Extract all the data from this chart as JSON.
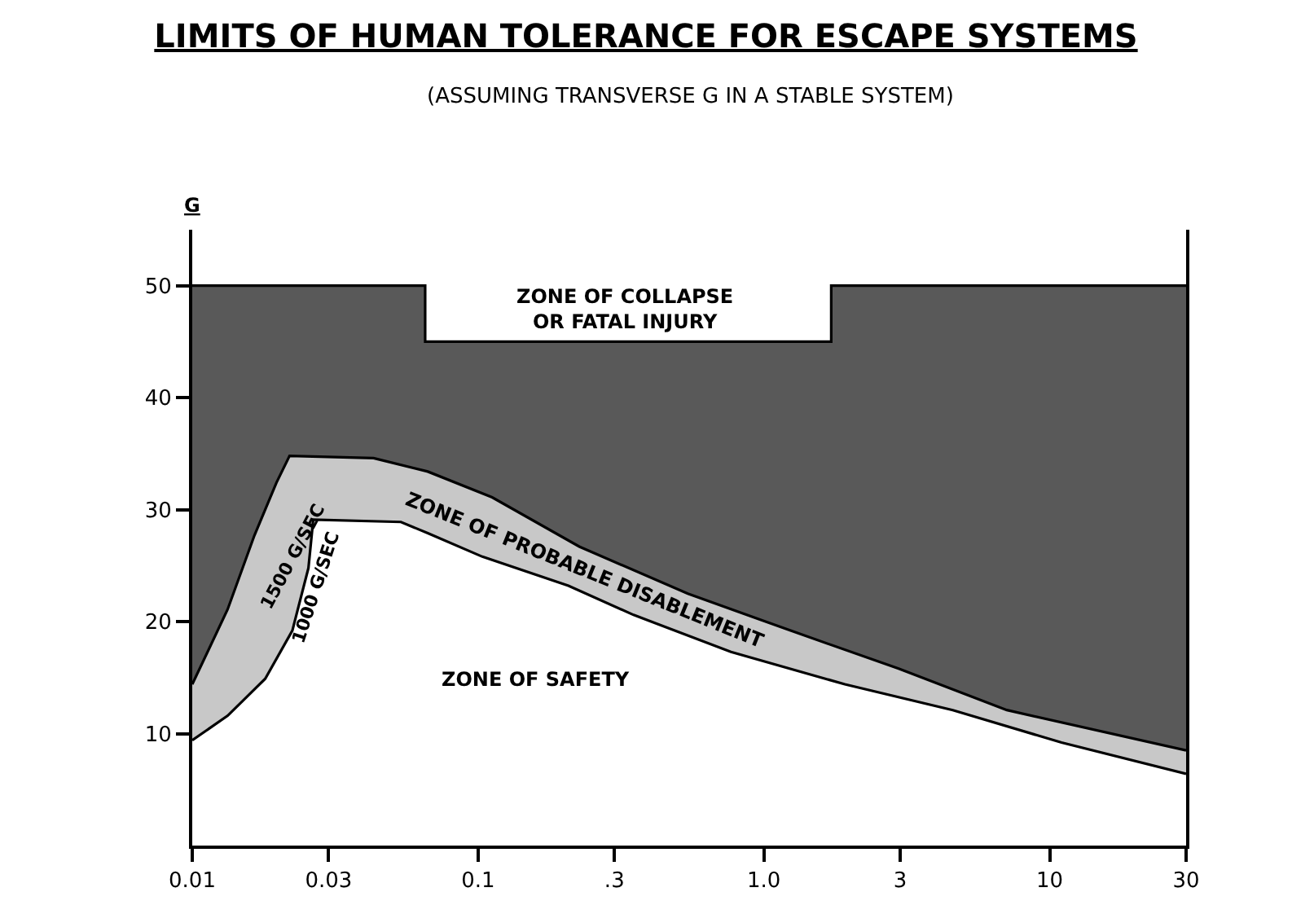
{
  "chart_data": {
    "type": "area",
    "title": "LIMITS OF HUMAN TOLERANCE FOR ESCAPE SYSTEMS",
    "subtitle": "(ASSUMING TRANSVERSE G IN A STABLE SYSTEM)",
    "ylabel": "G",
    "series": [
      {
        "color": "#ffffff",
        "x": [
          0.01,
          0.0133,
          0.018,
          0.0224,
          0.0255,
          0.0265,
          0.0537,
          0.0667,
          0.1035,
          0.207,
          0.35,
          0.767,
          1.92,
          4.58,
          11.0,
          30
        ],
        "values": [
          9.4,
          11.6,
          14.9,
          19.2,
          24.8,
          29.1,
          28.9,
          27.9,
          25.8,
          23.2,
          20.6,
          17.3,
          14.4,
          12.1,
          9.2,
          6.4
        ]
      },
      {
        "color": "#c8c8c8",
        "x": [
          0.01,
          0.0133,
          0.0165,
          0.0197,
          0.0219,
          0.0431,
          0.0667,
          0.112,
          0.226,
          0.542,
          1.24,
          2.96,
          7.08,
          30
        ],
        "values": [
          14.4,
          21.1,
          27.7,
          32.4,
          34.8,
          34.6,
          33.4,
          31.1,
          26.7,
          22.5,
          19.2,
          15.8,
          12.1,
          8.5
        ]
      },
      {
        "color": "#595959",
        "x": [
          0.01,
          0.0653,
          0.0653,
          1.72,
          1.72,
          30
        ],
        "values": [
          50,
          50,
          45,
          45,
          50,
          50
        ]
      }
    ],
    "annotations": [
      "ZONE OF COLLAPSE\nOR FATAL INJURY",
      "1500 G/SEC",
      "1000 G/SEC",
      "ZONE OF PROBABLE DISABLEMENT",
      "ZONE OF SAFETY"
    ],
    "log": "x",
    "xlim": [
      0.01,
      30
    ],
    "xticks": [
      0.01,
      0.03,
      0.1,
      {
        "value": 0.3,
        "label": ".3"
      },
      {
        "value": 1,
        "label": "1.0"
      },
      3,
      10,
      30
    ],
    "ylim": [
      0,
      55
    ],
    "yticks": [
      10,
      20,
      30,
      40,
      50
    ],
    "marker": "none"
  }
}
